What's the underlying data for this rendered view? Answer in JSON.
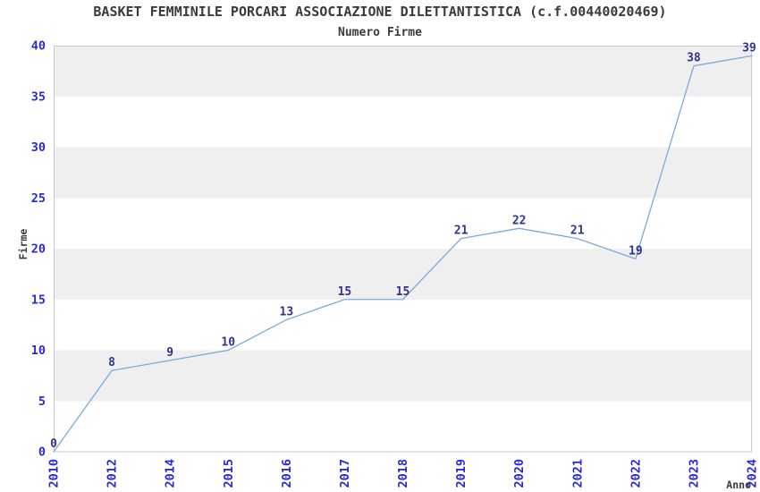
{
  "chart_data": {
    "type": "line",
    "title": "BASKET FEMMINILE PORCARI ASSOCIAZIONE DILETTANTISTICA (c.f.00440020469)",
    "subtitle": "Numero Firme",
    "xlabel": "Anno",
    "ylabel": "Firme",
    "categories": [
      "2010",
      "2012",
      "2014",
      "2015",
      "2016",
      "2017",
      "2018",
      "2019",
      "2020",
      "2021",
      "2022",
      "2023",
      "2024"
    ],
    "series": [
      {
        "name": "Numero Firme",
        "values": [
          0,
          8,
          9,
          10,
          13,
          15,
          15,
          21,
          22,
          21,
          19,
          38,
          39
        ]
      }
    ],
    "ylim": [
      0,
      40
    ],
    "ytick_step": 5,
    "yticks": [
      0,
      5,
      10,
      15,
      20,
      25,
      30,
      35,
      40
    ],
    "grid": "alternating-horizontal-bands",
    "legend": "none",
    "x_tick_rotation_deg": -90,
    "markers": "none",
    "colors": {
      "line": "#7aa9e0",
      "tick_label": "#2a2ad2",
      "data_label": "#333388",
      "band": "#efefef",
      "plot_border": "#c9c9c9",
      "text": "#3a3a3a",
      "background": "#ffffff"
    }
  }
}
